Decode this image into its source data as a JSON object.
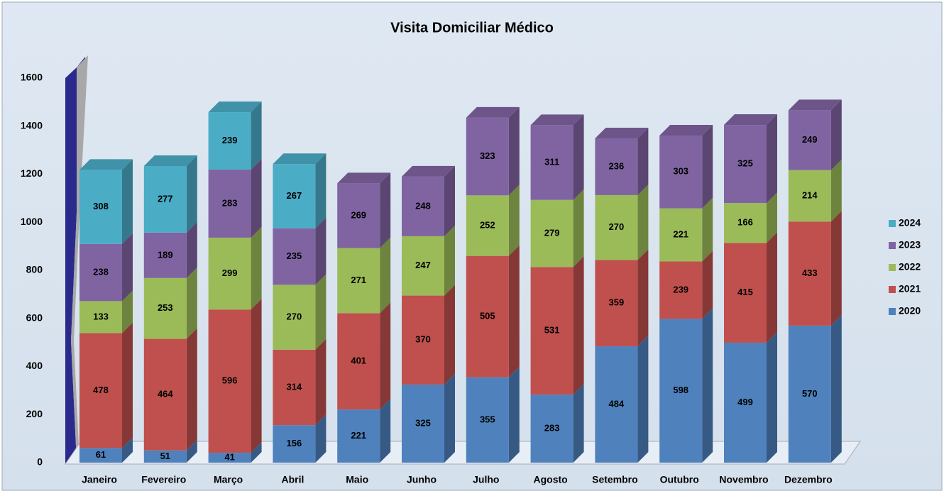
{
  "chart_data": {
    "type": "stacked_bar_3d",
    "title": "Visita Domiciliar Médico",
    "categories": [
      "Janeiro",
      "Fevereiro",
      "Março",
      "Abril",
      "Maio",
      "Junho",
      "Julho",
      "Agosto",
      "Setembro",
      "Outubro",
      "Novembro",
      "Dezembro"
    ],
    "series": [
      {
        "name": "2020",
        "color": "#4f81bd",
        "values": [
          61,
          51,
          41,
          156,
          221,
          325,
          355,
          283,
          484,
          598,
          499,
          570
        ]
      },
      {
        "name": "2021",
        "color": "#c0504d",
        "values": [
          478,
          464,
          596,
          314,
          401,
          370,
          505,
          531,
          359,
          239,
          415,
          433
        ]
      },
      {
        "name": "2022",
        "color": "#9bbb59",
        "values": [
          133,
          253,
          299,
          270,
          271,
          247,
          252,
          279,
          270,
          221,
          166,
          214
        ]
      },
      {
        "name": "2023",
        "color": "#8064a2",
        "values": [
          238,
          189,
          283,
          235,
          269,
          248,
          323,
          311,
          236,
          303,
          325,
          249
        ]
      },
      {
        "name": "2024",
        "color": "#4bacc6",
        "values": [
          308,
          277,
          239,
          267,
          null,
          null,
          null,
          null,
          null,
          null,
          null,
          null
        ]
      }
    ],
    "ylim": [
      0,
      1600
    ],
    "yticks": [
      0,
      200,
      400,
      600,
      800,
      1000,
      1200,
      1400,
      1600
    ],
    "grid": false,
    "legend": "right"
  }
}
